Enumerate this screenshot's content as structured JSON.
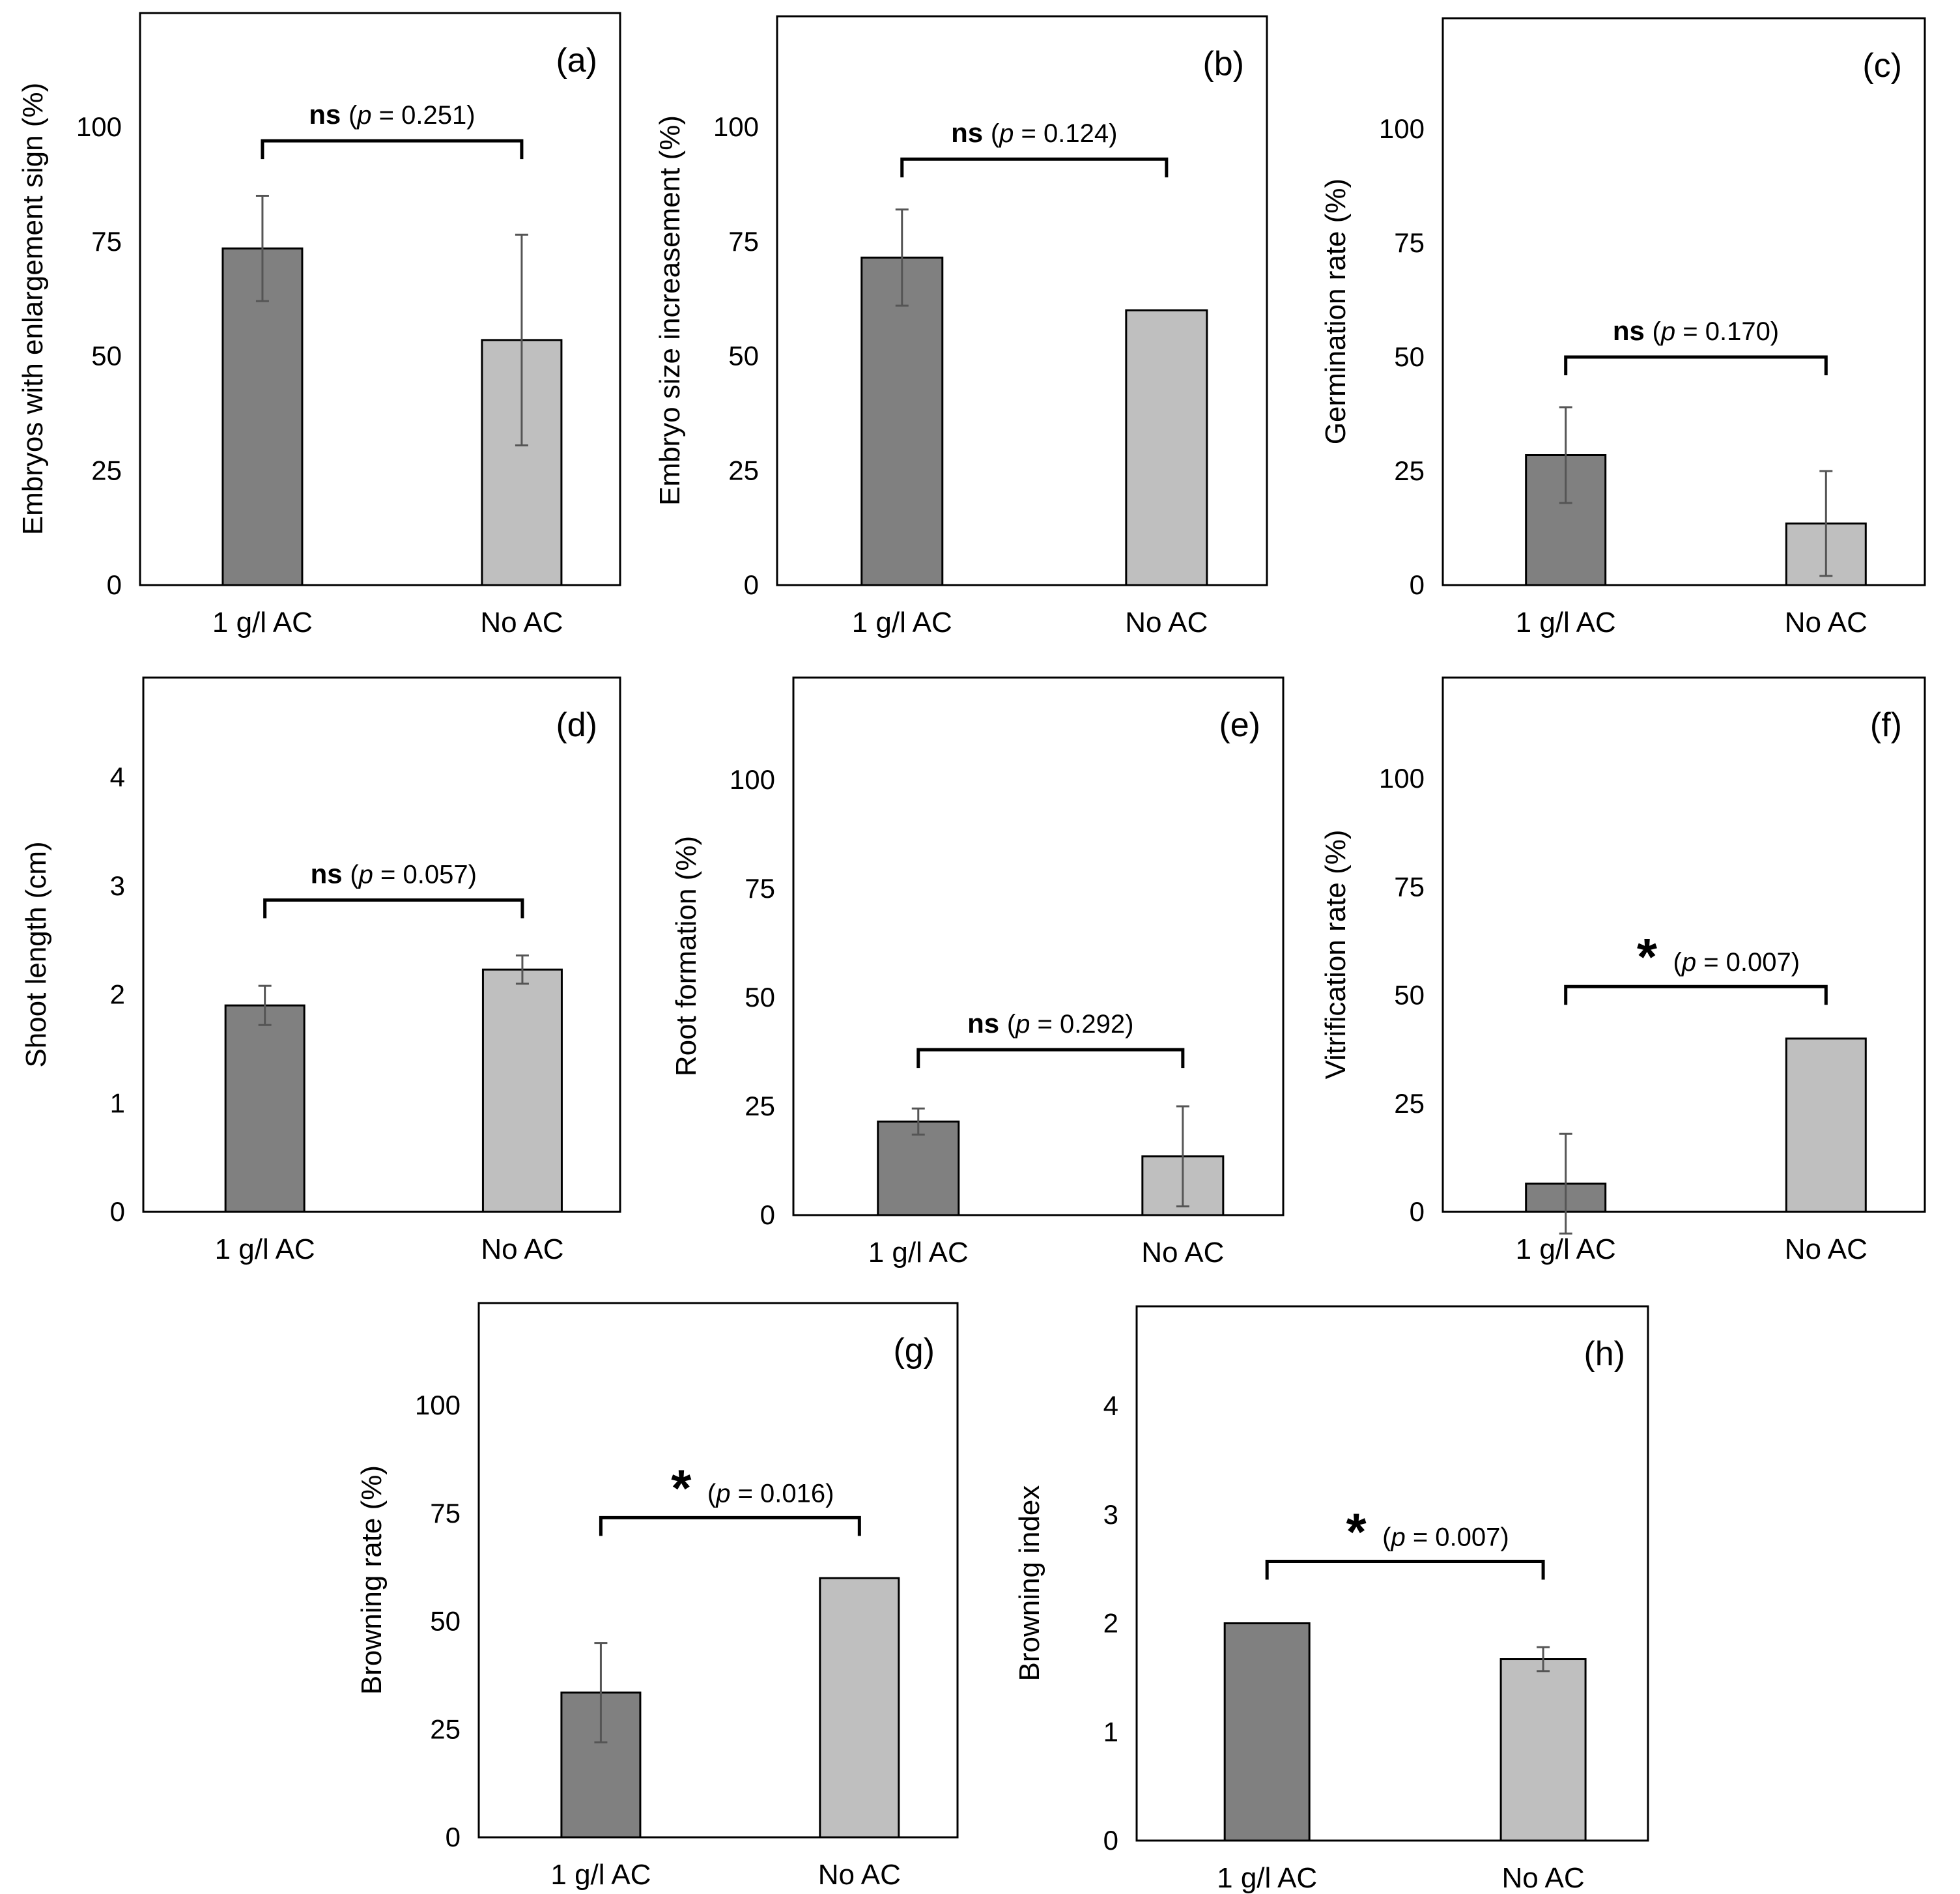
{
  "figure": {
    "background": "#ffffff"
  },
  "colors": {
    "ac": "#808080",
    "noac": "#bfbfbf",
    "error": "#555555",
    "frame": "#000000",
    "bracket": "#000000"
  },
  "chart_data": [
    {
      "type": "bar",
      "panel": "(a)",
      "categories": [
        "1 g/l AC",
        "No AC"
      ],
      "values": [
        73.5,
        53.5
      ],
      "errors": [
        11.5,
        23
      ],
      "ylabel": "Embryos with enlargement sign (%)",
      "ylim": [
        0,
        125
      ],
      "yticks": [
        0,
        25,
        50,
        75,
        100
      ],
      "annotation": {
        "kind": "ns",
        "mark": "ns",
        "p_italic": "p",
        "p_rest": " = 0.251)",
        "open": "(",
        "y": 97
      }
    },
    {
      "type": "bar",
      "panel": "(b)",
      "categories": [
        "1 g/l AC",
        "No AC"
      ],
      "values": [
        71.5,
        60
      ],
      "errors": [
        10.5,
        0
      ],
      "ylabel": "Embryo size increasement (%)",
      "ylim": [
        0,
        125
      ],
      "yticks": [
        0,
        25,
        50,
        75,
        100
      ],
      "annotation": {
        "kind": "ns",
        "mark": "ns",
        "p_italic": "p",
        "p_rest": " = 0.124)",
        "open": "(",
        "y": 93
      }
    },
    {
      "type": "bar",
      "panel": "(c)",
      "categories": [
        "1 g/l AC",
        "No AC"
      ],
      "values": [
        28.5,
        13.5
      ],
      "errors": [
        10.5,
        11.5
      ],
      "ylabel": "Germination rate (%)",
      "ylim": [
        0,
        125
      ],
      "yticks": [
        0,
        25,
        50,
        75,
        100
      ],
      "annotation": {
        "kind": "ns",
        "mark": "ns",
        "p_italic": "p",
        "p_rest": " = 0.170)",
        "open": "(",
        "y": 50
      }
    },
    {
      "type": "bar",
      "panel": "(d)",
      "categories": [
        "1 g/l AC",
        "No AC"
      ],
      "values": [
        1.9,
        2.23
      ],
      "errors": [
        0.18,
        0.13
      ],
      "ylabel": "Shoot length (cm)",
      "ylim": [
        0,
        5
      ],
      "yticks": [
        0,
        1,
        2,
        3,
        4
      ],
      "annotation": {
        "kind": "ns",
        "mark": "ns",
        "p_italic": "p",
        "p_rest": " = 0.057)",
        "open": "(",
        "y": 2.87
      }
    },
    {
      "type": "bar",
      "panel": "(e)",
      "categories": [
        "1 g/l AC",
        "No AC"
      ],
      "values": [
        21.5,
        13.5
      ],
      "errors": [
        3,
        11.5
      ],
      "ylabel": "Root formation (%)",
      "ylim": [
        0,
        125
      ],
      "yticks": [
        0,
        25,
        50,
        75,
        100
      ],
      "annotation": {
        "kind": "ns",
        "mark": "ns",
        "p_italic": "p",
        "p_rest": " = 0.292)",
        "open": "(",
        "y": 38
      }
    },
    {
      "type": "bar",
      "panel": "(f)",
      "categories": [
        "1 g/l AC",
        "No AC"
      ],
      "values": [
        6.5,
        40
      ],
      "errors": [
        11.5,
        0
      ],
      "ylabel": "Vitrification rate (%)",
      "ylim": [
        0,
        125
      ],
      "yticks": [
        0,
        25,
        50,
        75,
        100
      ],
      "annotation": {
        "kind": "star",
        "mark": "*",
        "p_italic": "p",
        "p_rest": " = 0.007)",
        "open": "(",
        "y": 52
      }
    },
    {
      "type": "bar",
      "panel": "(g)",
      "categories": [
        "1 g/l AC",
        "No AC"
      ],
      "values": [
        33.5,
        60
      ],
      "errors": [
        11.5,
        0
      ],
      "ylabel": "Browning rate (%)",
      "ylim": [
        0,
        125
      ],
      "yticks": [
        0,
        25,
        50,
        75,
        100
      ],
      "annotation": {
        "kind": "star",
        "mark": "*",
        "p_italic": "p",
        "p_rest": " = 0.016)",
        "open": "(",
        "y": 74
      }
    },
    {
      "type": "bar",
      "panel": "(h)",
      "categories": [
        "1 g/l AC",
        "No AC"
      ],
      "values": [
        2.0,
        1.67
      ],
      "errors": [
        0,
        0.11
      ],
      "ylabel": "Browning index",
      "ylim": [
        0,
        5
      ],
      "yticks": [
        0,
        1,
        2,
        3,
        4
      ],
      "annotation": {
        "kind": "star",
        "mark": "*",
        "p_italic": "p",
        "p_rest": " = 0.007)",
        "open": "(",
        "y": 2.57
      }
    }
  ]
}
